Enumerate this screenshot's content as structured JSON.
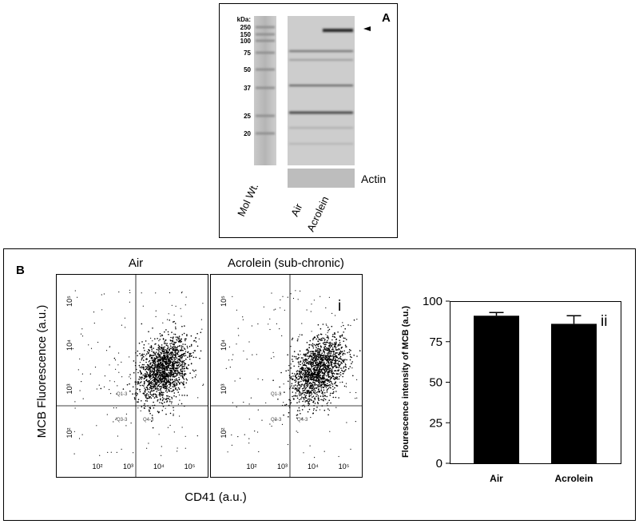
{
  "panel_a": {
    "label": "A",
    "mw_unit": "kDa:",
    "mw_markers": [
      250,
      150,
      100,
      75,
      50,
      37,
      25,
      20
    ],
    "loading_control": "Actin",
    "lanes": [
      "Mol Wt.",
      "Air",
      "Acrolein"
    ]
  },
  "panel_b": {
    "label": "B",
    "flow": {
      "titles": [
        "Air",
        "Acrolein (sub-chronic)"
      ],
      "y_label": "MCB Fluorescence (a.u.)",
      "x_label": "CD41 (a.u.)",
      "axis_labels": [
        "10²",
        "10³",
        "10⁴",
        "10⁵"
      ],
      "quadrants": [
        "Q1-3",
        "Q3-3",
        "Q4-3"
      ],
      "annotation": "i"
    }
  },
  "chart_data": {
    "type": "bar",
    "y_label": "Flourescence intensity of MCB (a.u.)",
    "annotation": "ii",
    "categories": [
      "Air",
      "Acrolein"
    ],
    "values": [
      91,
      86
    ],
    "errors": [
      2,
      5
    ],
    "color": "#000000",
    "ylim": [
      0,
      100
    ],
    "yticks": [
      0,
      25,
      50,
      75,
      100
    ]
  }
}
